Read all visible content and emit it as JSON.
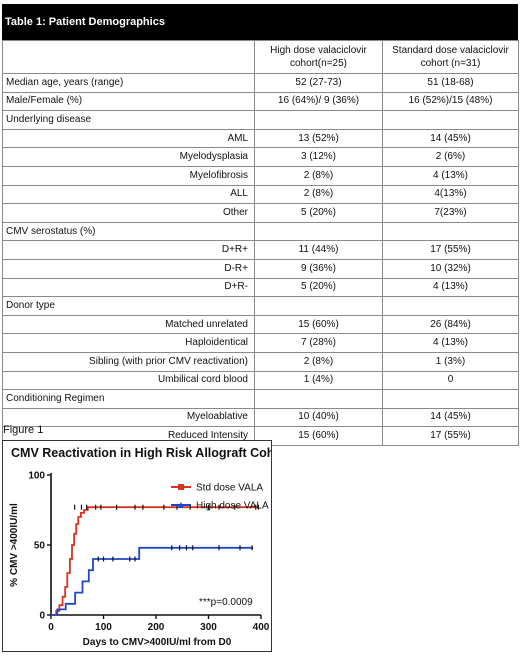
{
  "table": {
    "title": "Table 1: Patient Demographics",
    "columns": [
      "",
      "High dose valaciclovir cohort(n=25)",
      "Standard dose valaciclovir cohort (n=31)"
    ],
    "rows": [
      {
        "kind": "data",
        "label": "Median age, years  (range)",
        "high": "52 (27-73)",
        "std": "51 (18-68)"
      },
      {
        "kind": "data",
        "label": "Male/Female (%)",
        "high": "16 (64%)/ 9 (36%)",
        "std": "16 (52%)/15 (48%)"
      },
      {
        "kind": "section",
        "label": "Underlying disease",
        "high": "",
        "std": ""
      },
      {
        "kind": "sub",
        "label": "AML",
        "high": "13 (52%)",
        "std": "14 (45%)"
      },
      {
        "kind": "sub",
        "label": "Myelodysplasia",
        "high": "3 (12%)",
        "std": "2 (6%)"
      },
      {
        "kind": "sub",
        "label": "Myelofibrosis",
        "high": "2 (8%)",
        "std": "4 (13%)"
      },
      {
        "kind": "sub",
        "label": "ALL",
        "high": "2 (8%)",
        "std": "4(13%)"
      },
      {
        "kind": "sub",
        "label": "Other",
        "high": "5 (20%)",
        "std": "7(23%)"
      },
      {
        "kind": "section",
        "label": "CMV serostatus (%)",
        "high": "",
        "std": ""
      },
      {
        "kind": "sub",
        "label": "D+R+",
        "high": "11 (44%)",
        "std": "17 (55%)"
      },
      {
        "kind": "sub",
        "label": "D-R+",
        "high": "9 (36%)",
        "std": "10 (32%)"
      },
      {
        "kind": "sub",
        "label": "D+R-",
        "high": "5 (20%)",
        "std": "4 (13%)"
      },
      {
        "kind": "section",
        "label": "Donor type",
        "high": "",
        "std": ""
      },
      {
        "kind": "sub",
        "label": "Matched unrelated",
        "high": "15 (60%)",
        "std": "26 (84%)"
      },
      {
        "kind": "sub",
        "label": "Haploidentical",
        "high": "7 (28%)",
        "std": "4 (13%)"
      },
      {
        "kind": "sub",
        "label": "Sibling (with prior CMV reactivation)",
        "high": "2 (8%)",
        "std": "1 (3%)"
      },
      {
        "kind": "sub",
        "label": "Umbilical cord blood",
        "high": "1 (4%)",
        "std": "0"
      },
      {
        "kind": "section",
        "label": "Conditioning Regimen",
        "high": "",
        "std": ""
      },
      {
        "kind": "sub",
        "label": "Myeloablative",
        "high": "10 (40%)",
        "std": "14 (45%)"
      },
      {
        "kind": "sub",
        "label": "Reduced Intensity",
        "high": "15 (60%)",
        "std": "17 (55%)"
      }
    ]
  },
  "figure": {
    "label": "Figure 1",
    "annotation": "***p=0.0009"
  },
  "colors": {
    "std": "#d9341f",
    "high": "#1f48c9"
  },
  "chart_data": {
    "type": "line",
    "title": "CMV Reactivation in High Risk Allograft Cohort",
    "xlabel": "Days to CMV>400IU/ml from D0",
    "ylabel": "% CMV >400IU/ml",
    "xlim": [
      0,
      400
    ],
    "ylim": [
      0,
      100
    ],
    "xticks": [
      0,
      100,
      200,
      300,
      400
    ],
    "yticks": [
      0,
      50,
      100
    ],
    "ytick_labels": [
      "0",
      "50",
      "100"
    ],
    "xtick_labels": [
      "0",
      "100",
      "200",
      "300",
      "400"
    ],
    "legend_position": "top-right",
    "series": [
      {
        "name": "Std dose VALA",
        "color": "#d9341f",
        "x": [
          0,
          10,
          16,
          22,
          27,
          31,
          36,
          40,
          44,
          48,
          52,
          57,
          63,
          70,
          395
        ],
        "y": [
          0,
          3,
          7,
          13,
          20,
          30,
          40,
          50,
          58,
          65,
          70,
          73,
          75,
          77,
          77
        ],
        "censor_x": [
          45,
          58,
          68,
          85,
          95,
          125,
          160,
          175,
          215,
          240,
          265,
          300,
          320,
          350,
          390,
          395
        ],
        "censor_y": 77
      },
      {
        "name": "High dose VALA",
        "color": "#1f48c9",
        "x": [
          0,
          12,
          28,
          46,
          60,
          72,
          80,
          168,
          385
        ],
        "y": [
          0,
          4,
          8,
          16,
          24,
          32,
          40,
          48,
          48
        ],
        "censor_x": [
          90,
          100,
          118,
          150,
          160,
          230,
          245,
          258,
          270,
          320,
          360,
          383
        ],
        "censor_y_for_x_below_168": 40,
        "censor_y_for_x_above_168": 48
      }
    ]
  }
}
